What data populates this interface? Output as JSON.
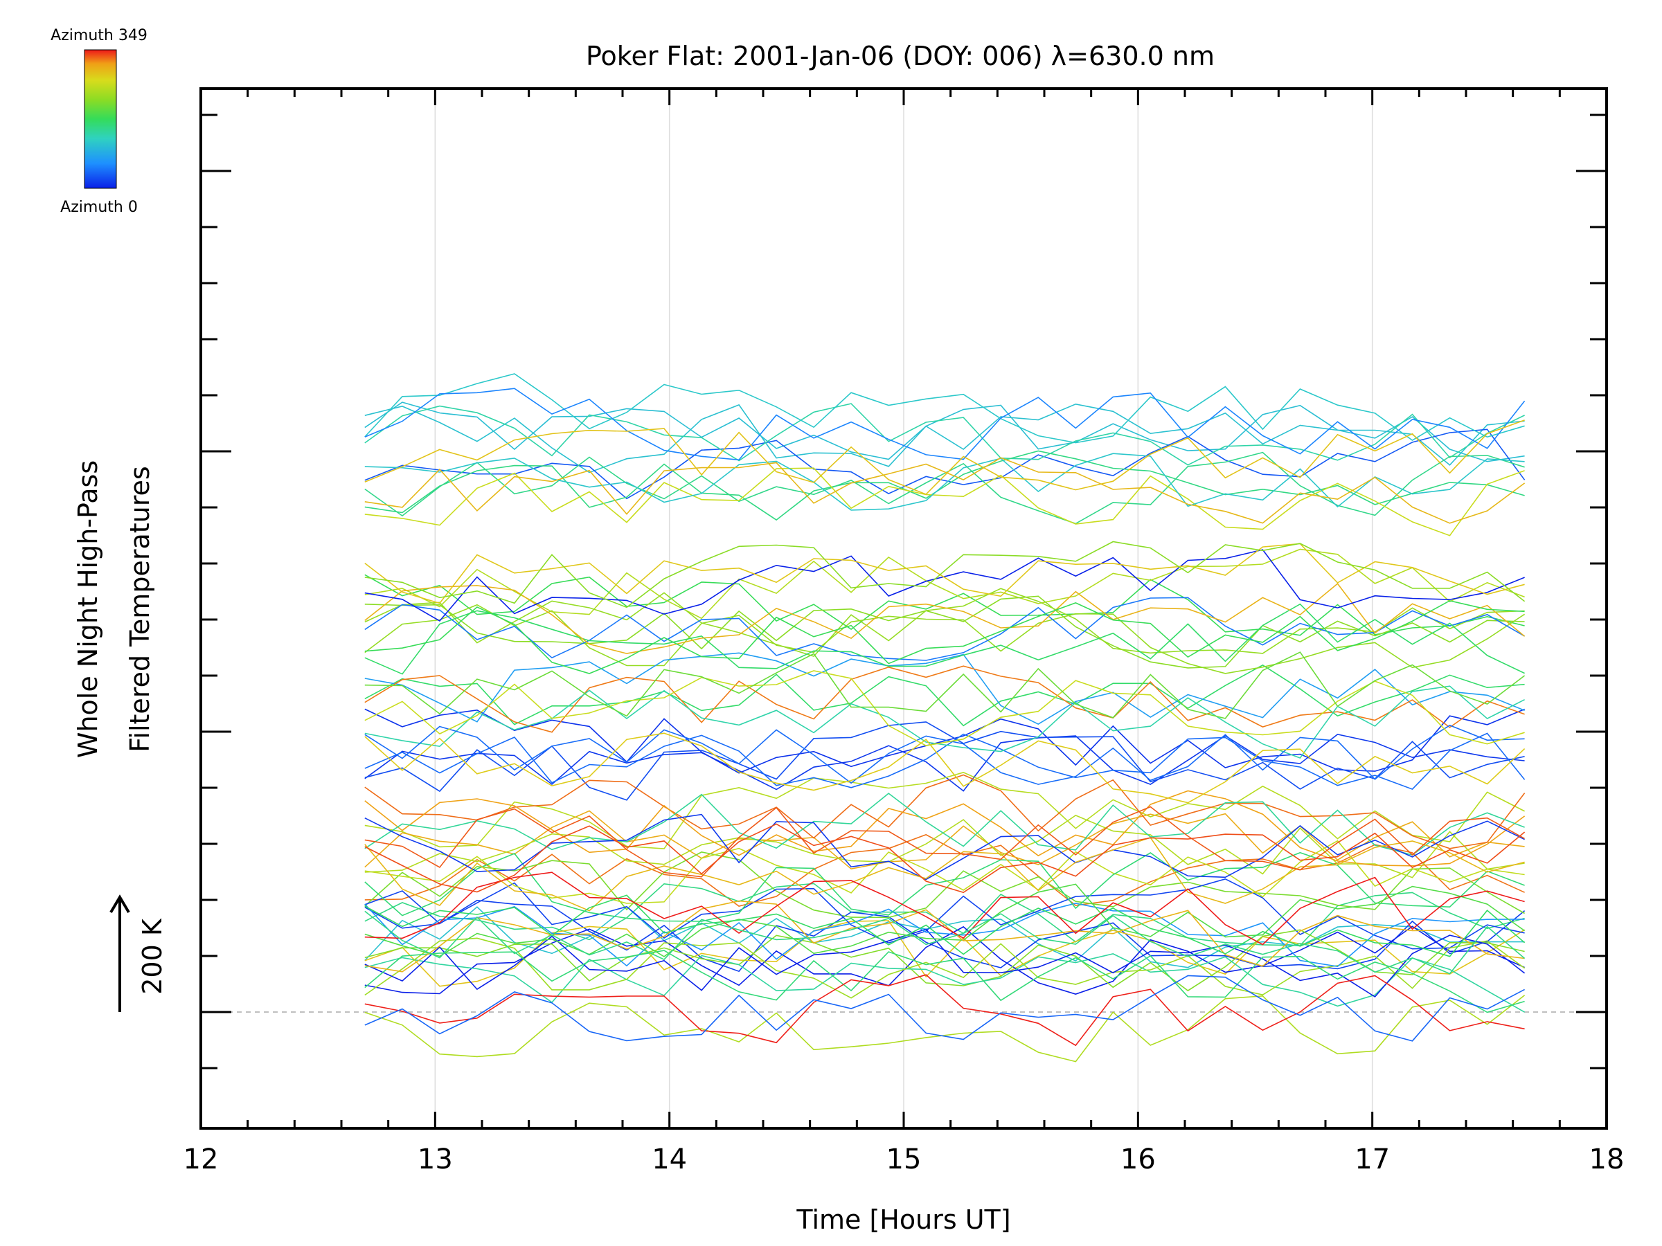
{
  "chart_data": {
    "type": "line",
    "title": "Poker Flat: 2001-Jan-06 (DOY: 006) λ=630.0 nm",
    "xlabel": "Time [Hours UT]",
    "ylabel_line1": "Whole Night High-Pass",
    "ylabel_line2": "Filtered Temperatures",
    "scale_label": "200 K",
    "xlim": [
      12,
      18
    ],
    "x_ticks": [
      "12",
      "13",
      "14",
      "15",
      "16",
      "17",
      "18"
    ],
    "x_gridlines": [
      13,
      14,
      15,
      16,
      17
    ],
    "grid": true,
    "legend": {
      "position": "top-left",
      "type": "colorbar",
      "top_label": "Azimuth 349",
      "bottom_label": "Azimuth 0",
      "colors": [
        "#0a1fe8",
        "#1e90ff",
        "#2fd2c0",
        "#34dc5a",
        "#8cdc24",
        "#d8dc1c",
        "#f0a016",
        "#ee1a1a"
      ]
    },
    "x_start": 12.7,
    "x_end": 17.65,
    "n_samples": 32,
    "n_series": 70,
    "series_offsets_K": [
      1000,
      750,
      500,
      300,
      130
    ],
    "baseline_K": 0,
    "units": "K"
  }
}
